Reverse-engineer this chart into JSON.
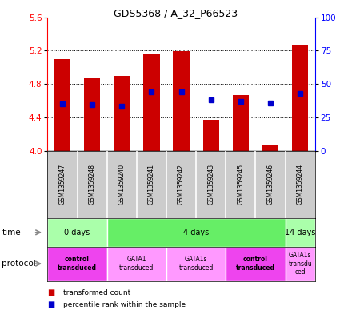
{
  "title": "GDS5368 / A_32_P66523",
  "samples": [
    "GSM1359247",
    "GSM1359248",
    "GSM1359240",
    "GSM1359241",
    "GSM1359242",
    "GSM1359243",
    "GSM1359245",
    "GSM1359246",
    "GSM1359244"
  ],
  "bar_tops": [
    5.1,
    4.87,
    4.9,
    5.17,
    5.19,
    4.37,
    4.67,
    4.07,
    5.27
  ],
  "blue_y": [
    4.56,
    4.55,
    4.53,
    4.71,
    4.71,
    4.61,
    4.59,
    4.57,
    4.69
  ],
  "ylim": [
    4.0,
    5.6
  ],
  "yticks_left": [
    4.0,
    4.4,
    4.8,
    5.2,
    5.6
  ],
  "yticks_right": [
    0,
    25,
    50,
    75,
    100
  ],
  "bar_color": "#cc0000",
  "blue_color": "#0000cc",
  "time_groups": [
    {
      "label": "0 days",
      "start": 0,
      "end": 2,
      "color": "#aaffaa"
    },
    {
      "label": "4 days",
      "start": 2,
      "end": 8,
      "color": "#66ee66"
    },
    {
      "label": "14 days",
      "start": 8,
      "end": 9,
      "color": "#aaffaa"
    }
  ],
  "protocol_groups": [
    {
      "label": "control\ntransduced",
      "start": 0,
      "end": 2,
      "color": "#ee44ee",
      "bold": true
    },
    {
      "label": "GATA1\ntransduced",
      "start": 2,
      "end": 4,
      "color": "#ff99ff",
      "bold": false
    },
    {
      "label": "GATA1s\ntransduced",
      "start": 4,
      "end": 6,
      "color": "#ff99ff",
      "bold": false
    },
    {
      "label": "control\ntransduced",
      "start": 6,
      "end": 8,
      "color": "#ee44ee",
      "bold": true
    },
    {
      "label": "GATA1s\ntransdu\nced",
      "start": 8,
      "end": 9,
      "color": "#ff99ff",
      "bold": false
    }
  ],
  "legend_red": "transformed count",
  "legend_blue": "percentile rank within the sample",
  "sample_bg": "#cccccc",
  "label_left_time": "time",
  "label_left_proto": "protocol"
}
